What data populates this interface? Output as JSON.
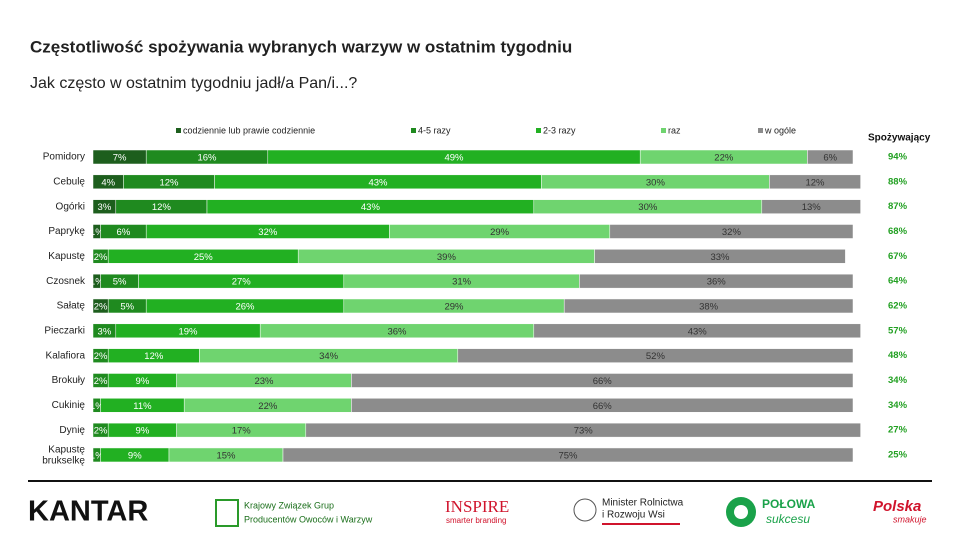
{
  "chart_data": {
    "type": "stacked-bar-horizontal",
    "title": "Częstotliwość spożywania wybranych warzyw w ostatnim tygodniu",
    "subtitle": "Jak często w ostatnim tygodniu jadł/a Pan/i...?",
    "categories": [
      "Pomidory",
      "Cebulę",
      "Ogórki",
      "Paprykę",
      "Kapustę",
      "Czosnek",
      "Sałatę",
      "Pieczarki",
      "Kalafiora",
      "Brokuły",
      "Cukinię",
      "Dynię",
      "Kapustę brukselkę"
    ],
    "xlim": [
      0,
      100
    ],
    "series": [
      {
        "name": "codziennie lub prawie codziennie",
        "color": "#1d5e1d",
        "values": [
          7,
          4,
          3,
          1,
          null,
          1,
          2,
          null,
          null,
          null,
          null,
          null,
          null
        ],
        "value_labels": [
          "7%",
          "4%",
          "3%",
          "1%",
          null,
          "1%",
          "2%",
          null,
          null,
          null,
          null,
          null,
          null
        ]
      },
      {
        "name": "4-5 razy",
        "color": "#1f8a1f",
        "values": [
          16,
          12,
          12,
          6,
          2,
          5,
          5,
          3,
          2,
          2,
          1,
          2,
          1
        ],
        "value_labels": [
          "16%",
          "12%",
          "12%",
          "6%",
          "2%",
          "5%",
          "5%",
          "3%",
          "2%",
          "2%",
          "1%",
          "2%",
          "1%"
        ]
      },
      {
        "name": "2-3 razy",
        "color": "#22b022",
        "values": [
          49,
          43,
          43,
          32,
          25,
          27,
          26,
          19,
          12,
          9,
          11,
          9,
          9
        ],
        "value_labels": [
          "49%",
          "43%",
          "43%",
          "32%",
          "25%",
          "27%",
          "26%",
          "19%",
          "12%",
          "9%",
          "11%",
          "9%",
          "9%"
        ]
      },
      {
        "name": "raz",
        "color": "#6fd46f",
        "values": [
          22,
          30,
          30,
          29,
          39,
          31,
          29,
          36,
          34,
          23,
          22,
          17,
          15
        ],
        "value_labels": [
          "22%",
          "30%",
          "30%",
          "29%",
          "39%",
          "31%",
          "29%",
          "36%",
          "34%",
          "23%",
          "22%",
          "17%",
          "15%"
        ]
      },
      {
        "name": "w ogóle",
        "color": "#8c8c8c",
        "values": [
          6,
          12,
          13,
          32,
          33,
          36,
          38,
          43,
          52,
          66,
          66,
          73,
          75
        ],
        "value_labels": [
          "6%",
          "12%",
          "13%",
          "32%",
          "33%",
          "36%",
          "38%",
          "43%",
          "52%",
          "66%",
          "66%",
          "73%",
          "75%"
        ]
      }
    ],
    "totals": {
      "name": "Spożywający",
      "color": "#22a022",
      "values": [
        94,
        88,
        87,
        68,
        67,
        64,
        62,
        57,
        48,
        34,
        34,
        27,
        25
      ],
      "value_labels": [
        "94%",
        "88%",
        "87%",
        "68%",
        "67%",
        "64%",
        "62%",
        "57%",
        "48%",
        "34%",
        "34%",
        "27%",
        "25%"
      ]
    }
  },
  "footer": {
    "kantar": "KANTAR",
    "kzgp": [
      "Krajowy Związek Grup",
      "Producentów Owoców i Warzyw"
    ],
    "inspire": "INSPIRE",
    "inspire_tag": "smarter branding",
    "minister": [
      "Minister Rolnictwa",
      "i Rozwoju Wsi"
    ],
    "polowa": "POŁOWA",
    "polowa_tag": "sukcesu",
    "polska": "Polska",
    "polska_tag": "smakuje"
  }
}
